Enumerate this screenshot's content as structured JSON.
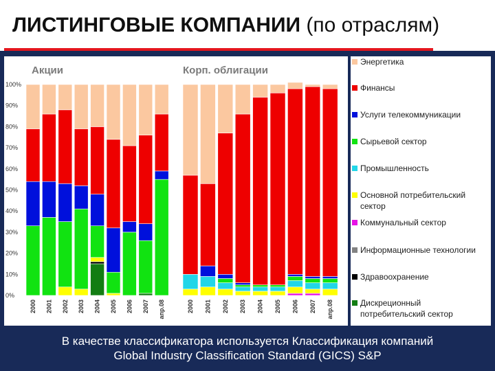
{
  "title": {
    "bold": "ЛИСТИНГОВЫЕ КОМПАНИИ",
    "normal": "(по отраслям)"
  },
  "colors": {
    "accent_rule": "#e4161e",
    "background": "#182a58",
    "sectors": [
      "#fbc8a0",
      "#ee0000",
      "#0010dc",
      "#11e311",
      "#22d6e8",
      "#ffff00",
      "#e612e6",
      "#828282",
      "#000000",
      "#137d13"
    ]
  },
  "legend": {
    "items": [
      "Энергетика",
      "Финансы",
      "Услуги телекоммуникации",
      "Сырьевой сектор",
      "Промышленность",
      "Основной потребительский сектор",
      "Коммунальный сектор",
      "Информационные технологии",
      "Здравоохранение",
      "Дискреционный потребительский сектор"
    ]
  },
  "chart_data": [
    {
      "type": "bar",
      "stacked": true,
      "title": "Акции",
      "ylim": [
        0,
        100
      ],
      "yticks": [
        "0%",
        "10%",
        "20%",
        "30%",
        "40%",
        "50%",
        "60%",
        "70%",
        "80%",
        "90%",
        "100%"
      ],
      "categories": [
        "2000",
        "2001",
        "2002",
        "2003",
        "2004",
        "2005",
        "2006",
        "2007",
        "апр.08"
      ],
      "series": [
        {
          "name": "Дискреционный потребительский сектор",
          "values": [
            0,
            0,
            0,
            0,
            15,
            0,
            0,
            1,
            0
          ]
        },
        {
          "name": "Здравоохранение",
          "values": [
            0,
            0,
            0,
            0,
            1,
            0,
            0,
            0,
            0
          ]
        },
        {
          "name": "Информационные технологии",
          "values": [
            0,
            0,
            0,
            0,
            0,
            0,
            0,
            0,
            0
          ]
        },
        {
          "name": "Коммунальный сектор",
          "values": [
            0,
            0,
            0,
            0,
            0,
            0,
            0,
            0,
            0
          ]
        },
        {
          "name": "Основной потребительский сектор",
          "values": [
            0,
            0,
            4,
            3,
            2,
            1,
            0,
            0,
            0
          ]
        },
        {
          "name": "Промышленность",
          "values": [
            0,
            0,
            0,
            0,
            0,
            0,
            0,
            0,
            0
          ]
        },
        {
          "name": "Сырьевой сектор",
          "values": [
            33,
            37,
            31,
            38,
            15,
            10,
            30,
            25,
            55
          ]
        },
        {
          "name": "Услуги телекоммуникации",
          "values": [
            21,
            17,
            18,
            11,
            15,
            21,
            5,
            8,
            4
          ]
        },
        {
          "name": "Финансы",
          "values": [
            25,
            32,
            35,
            27,
            32,
            42,
            36,
            42,
            27
          ]
        },
        {
          "name": "Энергетика",
          "values": [
            21,
            14,
            12,
            21,
            20,
            26,
            29,
            24,
            14
          ]
        }
      ]
    },
    {
      "type": "bar",
      "stacked": true,
      "title": "Корп. облигации",
      "ylim": [
        0,
        100
      ],
      "categories": [
        "2000",
        "2001",
        "2002",
        "2003",
        "2004",
        "2005",
        "2006",
        "2007",
        "апр.08"
      ],
      "series": [
        {
          "name": "Дискреционный потребительский сектор",
          "values": [
            0,
            0,
            0,
            0,
            0,
            0,
            0,
            0,
            0
          ]
        },
        {
          "name": "Здравоохранение",
          "values": [
            0,
            0,
            0,
            0,
            0,
            0,
            0,
            0,
            0
          ]
        },
        {
          "name": "Информационные технологии",
          "values": [
            0,
            0,
            0,
            0,
            0,
            0,
            0,
            0,
            0
          ]
        },
        {
          "name": "Коммунальный сектор",
          "values": [
            0,
            0,
            0,
            0,
            0,
            0,
            1,
            1,
            0
          ]
        },
        {
          "name": "Основной потребительский сектор",
          "values": [
            3,
            4,
            3,
            2,
            2,
            2,
            3,
            2,
            3
          ]
        },
        {
          "name": "Промышленность",
          "values": [
            7,
            5,
            3,
            2,
            2,
            2,
            3,
            3,
            3
          ]
        },
        {
          "name": "Сырьевой сектор",
          "values": [
            0,
            0,
            2,
            1,
            1,
            1,
            2,
            2,
            2
          ]
        },
        {
          "name": "Услуги телекоммуникации",
          "values": [
            0,
            5,
            2,
            1,
            0,
            0,
            1,
            1,
            1
          ]
        },
        {
          "name": "Финансы",
          "values": [
            47,
            39,
            67,
            80,
            89,
            91,
            88,
            90,
            89
          ]
        },
        {
          "name": "Энергетика",
          "values": [
            43,
            47,
            23,
            14,
            6,
            4,
            3,
            1,
            2
          ]
        }
      ]
    }
  ],
  "footnote": {
    "line1": "В качестве классификатора используется Классификация компаний",
    "line2": "Global Industry Classification Standard (GICS) S&P"
  }
}
